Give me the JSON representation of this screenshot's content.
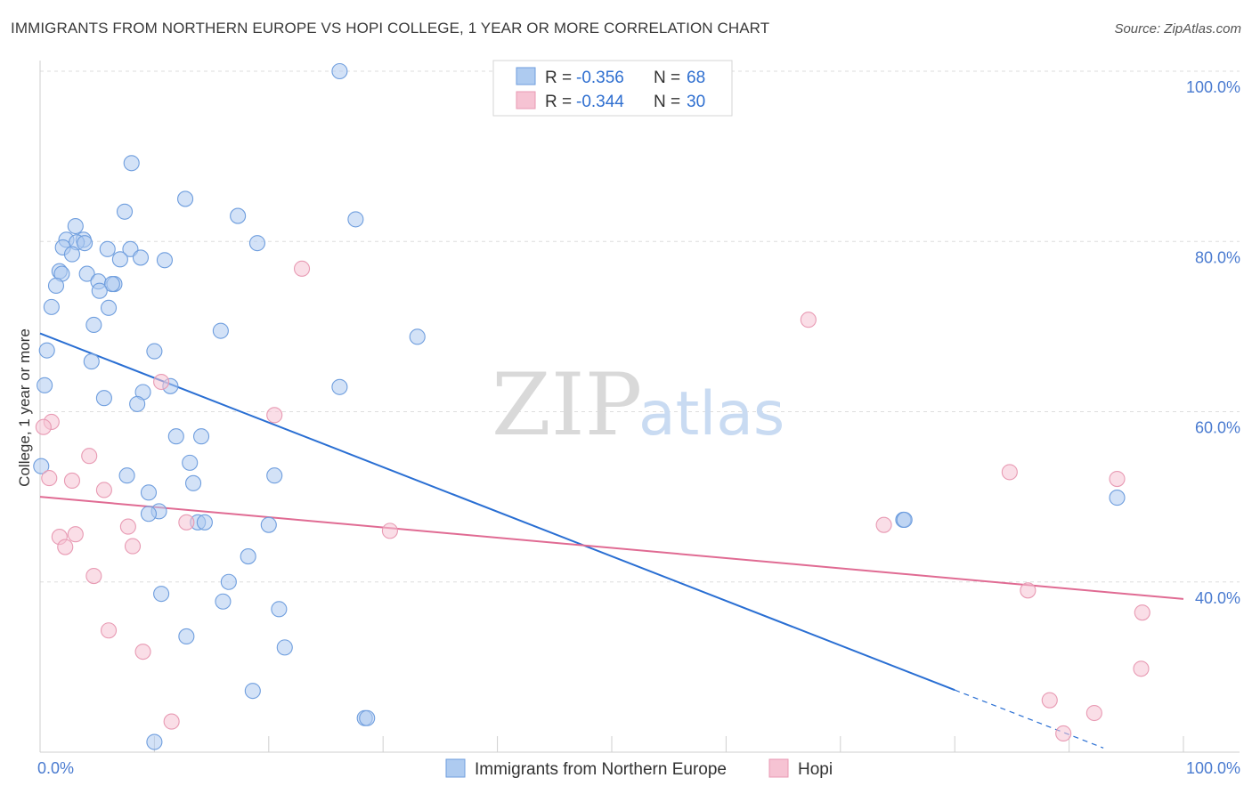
{
  "title": "IMMIGRANTS FROM NORTHERN EUROPE VS HOPI COLLEGE, 1 YEAR OR MORE CORRELATION CHART",
  "source": "Source: ZipAtlas.com",
  "watermark": {
    "zip": "ZIP",
    "atlas": "atlas"
  },
  "colors": {
    "blue_fill": "#aecbf0",
    "blue_stroke": "#6f9ede",
    "blue_line": "#2a6fd3",
    "pink_fill": "#f6c3d3",
    "pink_stroke": "#e89ab3",
    "pink_line": "#e06b93",
    "grid": "#dedede"
  },
  "chart_data": {
    "type": "scatter",
    "xlabel": "",
    "ylabel": "College, 1 year or more",
    "xlim": [
      0,
      100
    ],
    "ylim": [
      20,
      100
    ],
    "x_tick_labels": [
      {
        "value": 0,
        "label": "0.0%"
      },
      {
        "value": 100,
        "label": "100.0%"
      }
    ],
    "y_tick_labels": [
      {
        "value": 100,
        "label": "100.0%"
      },
      {
        "value": 80,
        "label": "80.0%"
      },
      {
        "value": 60,
        "label": "60.0%"
      },
      {
        "value": 40,
        "label": "40.0%"
      }
    ],
    "legend": [
      {
        "series": "Immigrants from Northern Europe",
        "r_label": "R =",
        "r_value": "-0.356",
        "n_label": "N =",
        "n_value": "68"
      },
      {
        "series": "Hopi",
        "r_label": "R =",
        "r_value": "-0.344",
        "n_label": "N =",
        "n_value": "30"
      }
    ],
    "series": [
      {
        "name": "Immigrants from Northern Europe",
        "color": "blue",
        "trend": {
          "x0": 0,
          "y0": 69.2,
          "x1": 80,
          "y1": 27.3,
          "dashed_to_x": 93
        },
        "points": [
          [
            26.2,
            100.0
          ],
          [
            8.0,
            89.2
          ],
          [
            12.7,
            85.0
          ],
          [
            7.4,
            83.5
          ],
          [
            17.3,
            83.0
          ],
          [
            27.6,
            82.6
          ],
          [
            3.1,
            81.8
          ],
          [
            2.3,
            80.2
          ],
          [
            3.8,
            80.2
          ],
          [
            3.2,
            79.9
          ],
          [
            19.0,
            79.8
          ],
          [
            3.9,
            79.8
          ],
          [
            2.0,
            79.3
          ],
          [
            5.9,
            79.1
          ],
          [
            7.9,
            79.1
          ],
          [
            2.8,
            78.5
          ],
          [
            8.8,
            78.1
          ],
          [
            7.0,
            77.9
          ],
          [
            10.9,
            77.8
          ],
          [
            1.7,
            76.5
          ],
          [
            1.9,
            76.2
          ],
          [
            4.1,
            76.2
          ],
          [
            5.1,
            75.3
          ],
          [
            6.5,
            75.0
          ],
          [
            6.3,
            75.0
          ],
          [
            1.4,
            74.8
          ],
          [
            5.2,
            74.2
          ],
          [
            1.0,
            72.3
          ],
          [
            6.0,
            72.2
          ],
          [
            4.7,
            70.2
          ],
          [
            15.8,
            69.5
          ],
          [
            33.0,
            68.8
          ],
          [
            0.6,
            67.2
          ],
          [
            10.0,
            67.1
          ],
          [
            4.5,
            65.9
          ],
          [
            0.4,
            63.1
          ],
          [
            26.2,
            62.9
          ],
          [
            11.4,
            63.0
          ],
          [
            9.0,
            62.3
          ],
          [
            5.6,
            61.6
          ],
          [
            8.5,
            60.9
          ],
          [
            11.9,
            57.1
          ],
          [
            14.1,
            57.1
          ],
          [
            13.1,
            54.0
          ],
          [
            0.1,
            53.6
          ],
          [
            7.6,
            52.5
          ],
          [
            20.5,
            52.5
          ],
          [
            13.4,
            51.6
          ],
          [
            9.5,
            50.5
          ],
          [
            75.5,
            47.3
          ],
          [
            75.6,
            47.3
          ],
          [
            94.2,
            49.9
          ],
          [
            10.4,
            48.3
          ],
          [
            9.5,
            48.0
          ],
          [
            13.8,
            47.0
          ],
          [
            14.4,
            47.0
          ],
          [
            20.0,
            46.7
          ],
          [
            18.2,
            43.0
          ],
          [
            16.5,
            40.0
          ],
          [
            10.6,
            38.6
          ],
          [
            16.0,
            37.7
          ],
          [
            20.9,
            36.8
          ],
          [
            12.8,
            33.6
          ],
          [
            21.4,
            32.3
          ],
          [
            18.6,
            27.2
          ],
          [
            28.4,
            24.0
          ],
          [
            28.6,
            24.0
          ],
          [
            10.0,
            21.2
          ]
        ]
      },
      {
        "name": "Hopi",
        "color": "pink",
        "trend": {
          "x0": 0,
          "y0": 50.0,
          "x1": 100,
          "y1": 38.0
        },
        "points": [
          [
            22.9,
            76.8
          ],
          [
            67.2,
            70.8
          ],
          [
            10.6,
            63.5
          ],
          [
            20.5,
            59.6
          ],
          [
            1.0,
            58.8
          ],
          [
            0.3,
            58.2
          ],
          [
            4.3,
            54.8
          ],
          [
            84.8,
            52.9
          ],
          [
            94.2,
            52.1
          ],
          [
            0.8,
            52.2
          ],
          [
            2.8,
            51.9
          ],
          [
            5.6,
            50.8
          ],
          [
            12.8,
            47.0
          ],
          [
            73.8,
            46.7
          ],
          [
            7.7,
            46.5
          ],
          [
            30.6,
            46.0
          ],
          [
            3.1,
            45.6
          ],
          [
            1.7,
            45.3
          ],
          [
            8.1,
            44.2
          ],
          [
            2.2,
            44.1
          ],
          [
            4.7,
            40.7
          ],
          [
            86.4,
            39.0
          ],
          [
            96.4,
            36.4
          ],
          [
            6.0,
            34.3
          ],
          [
            9.0,
            31.8
          ],
          [
            96.3,
            29.8
          ],
          [
            88.3,
            26.1
          ],
          [
            92.2,
            24.6
          ],
          [
            11.5,
            23.6
          ],
          [
            89.5,
            22.2
          ]
        ]
      }
    ]
  },
  "bottom_legend": [
    {
      "label": "Immigrants from Northern Europe",
      "color": "blue"
    },
    {
      "label": "Hopi",
      "color": "pink"
    }
  ]
}
